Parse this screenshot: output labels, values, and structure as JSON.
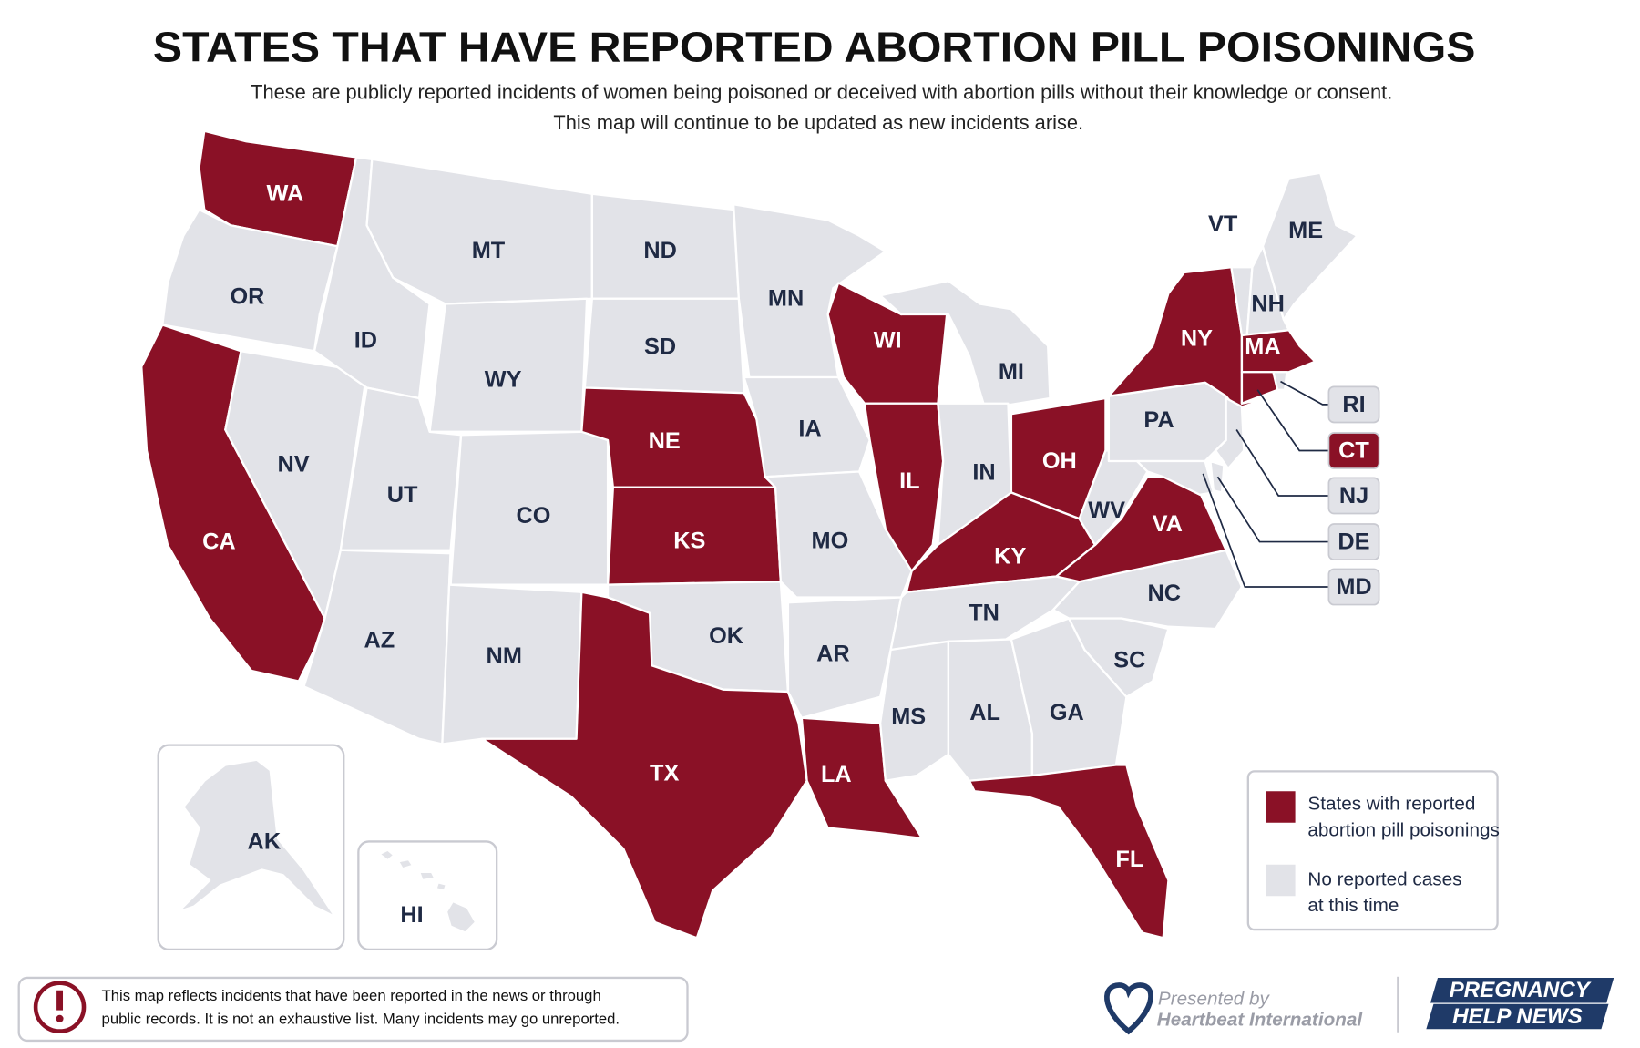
{
  "title": "STATES THAT HAVE REPORTED ABORTION PILL POISONINGS",
  "subtitle": [
    "These are publicly reported incidents of women being poisoned or deceived with abortion pills without their knowledge or consent.",
    "This map will continue to be updated as new incidents arise."
  ],
  "colors": {
    "reported": "#8a1126",
    "not_reported": "#e2e3e8"
  },
  "states": [
    {
      "label": "WA",
      "reported": true
    },
    {
      "label": "OR",
      "reported": false
    },
    {
      "label": "CA",
      "reported": true
    },
    {
      "label": "NV",
      "reported": false
    },
    {
      "label": "ID",
      "reported": false
    },
    {
      "label": "MT",
      "reported": false
    },
    {
      "label": "WY",
      "reported": false
    },
    {
      "label": "UT",
      "reported": false
    },
    {
      "label": "CO",
      "reported": false
    },
    {
      "label": "AZ",
      "reported": false
    },
    {
      "label": "NM",
      "reported": false
    },
    {
      "label": "ND",
      "reported": false
    },
    {
      "label": "SD",
      "reported": false
    },
    {
      "label": "NE",
      "reported": true
    },
    {
      "label": "KS",
      "reported": true
    },
    {
      "label": "OK",
      "reported": false
    },
    {
      "label": "TX",
      "reported": true
    },
    {
      "label": "MN",
      "reported": false
    },
    {
      "label": "IA",
      "reported": false
    },
    {
      "label": "MO",
      "reported": false
    },
    {
      "label": "AR",
      "reported": false
    },
    {
      "label": "LA",
      "reported": true
    },
    {
      "label": "WI",
      "reported": true
    },
    {
      "label": "IL",
      "reported": true
    },
    {
      "label": "MI",
      "reported": false
    },
    {
      "label": "IN",
      "reported": false
    },
    {
      "label": "OH",
      "reported": true
    },
    {
      "label": "KY",
      "reported": true
    },
    {
      "label": "TN",
      "reported": false
    },
    {
      "label": "MS",
      "reported": false
    },
    {
      "label": "AL",
      "reported": false
    },
    {
      "label": "GA",
      "reported": false
    },
    {
      "label": "FL",
      "reported": true
    },
    {
      "label": "SC",
      "reported": false
    },
    {
      "label": "NC",
      "reported": false
    },
    {
      "label": "VA",
      "reported": true
    },
    {
      "label": "WV",
      "reported": false
    },
    {
      "label": "PA",
      "reported": false
    },
    {
      "label": "NY",
      "reported": true
    },
    {
      "label": "VT",
      "reported": false
    },
    {
      "label": "NH",
      "reported": false
    },
    {
      "label": "ME",
      "reported": false
    },
    {
      "label": "MA",
      "reported": true
    },
    {
      "label": "RI",
      "reported": false
    },
    {
      "label": "CT",
      "reported": true
    },
    {
      "label": "NJ",
      "reported": false
    },
    {
      "label": "DE",
      "reported": false
    },
    {
      "label": "MD",
      "reported": false
    },
    {
      "label": "AK",
      "reported": false
    },
    {
      "label": "HI",
      "reported": false
    }
  ],
  "legend": {
    "reported": [
      "States with reported",
      "abortion pill poisonings"
    ],
    "not_reported": [
      "No reported cases",
      "at this time"
    ]
  },
  "note": [
    "This map reflects incidents that have been reported in the news or through",
    "public records. It is not an exhaustive list. Many incidents may go unreported."
  ],
  "credit": {
    "presented_by": "Presented by",
    "organization": "Heartbeat International"
  },
  "logo": [
    "PREGNANCY",
    "HELP NEWS"
  ]
}
